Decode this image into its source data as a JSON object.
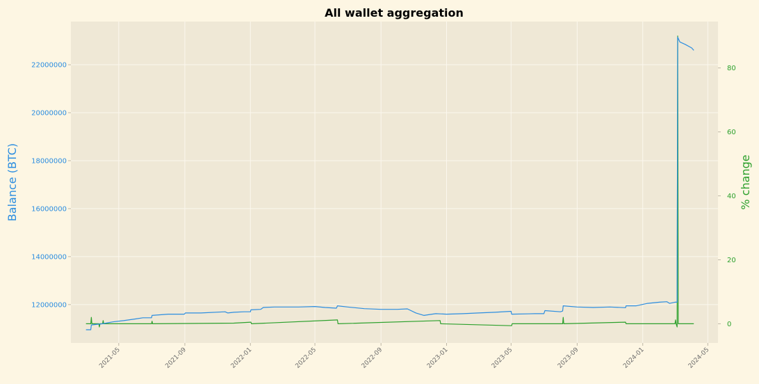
{
  "chart_data": {
    "type": "line",
    "title": "All wallet aggregation",
    "colors": {
      "background": "#fdf6e3",
      "plot_background": "#efe8d6",
      "grid": "#fbf7ee",
      "balance": "#2b8de0",
      "pct_change": "#2ca02c"
    },
    "left_axis": {
      "label": "Balance (BTC)",
      "ylim": [
        10400000,
        23800000
      ],
      "ticks": [
        "12000000",
        "14000000",
        "16000000",
        "18000000",
        "20000000",
        "22000000"
      ],
      "tick_values": [
        12000000,
        14000000,
        16000000,
        18000000,
        20000000,
        22000000
      ]
    },
    "right_axis": {
      "label": "% change",
      "ylim": [
        -6.0,
        94.5
      ],
      "ticks": [
        "0",
        "20",
        "40",
        "60",
        "80"
      ],
      "tick_values": [
        0,
        20,
        40,
        60,
        80
      ]
    },
    "x_axis": {
      "xlim": [
        "2021-02-01",
        "2024-05-20"
      ],
      "ticks": [
        "2021-05",
        "2021-09",
        "2022-01",
        "2022-05",
        "2022-09",
        "2023-01",
        "2023-05",
        "2023-09",
        "2024-01",
        "2024-05"
      ],
      "tick_dates": [
        "2021-05-01",
        "2021-09-01",
        "2022-01-01",
        "2022-05-01",
        "2022-09-01",
        "2023-01-01",
        "2023-05-01",
        "2023-09-01",
        "2024-01-01",
        "2024-05-01"
      ]
    },
    "grid": true,
    "series": [
      {
        "name": "Balance (BTC)",
        "axis": "left",
        "x": [
          "2021-03-01",
          "2021-03-10",
          "2021-03-11",
          "2021-04-01",
          "2021-04-20",
          "2021-05-10",
          "2021-06-01",
          "2021-06-15",
          "2021-07-01",
          "2021-07-02",
          "2021-08-01",
          "2021-08-31",
          "2021-09-02",
          "2021-09-20",
          "2021-10-01",
          "2021-11-15",
          "2021-11-20",
          "2021-12-01",
          "2021-12-20",
          "2022-01-01",
          "2022-01-02",
          "2022-01-20",
          "2022-01-25",
          "2022-02-15",
          "2022-03-01",
          "2022-04-01",
          "2022-05-01",
          "2022-05-20",
          "2022-06-10",
          "2022-06-12",
          "2022-07-01",
          "2022-08-01",
          "2022-09-01",
          "2022-10-01",
          "2022-10-20",
          "2022-11-05",
          "2022-11-20",
          "2022-12-05",
          "2022-12-12",
          "2023-01-01",
          "2023-02-01",
          "2023-03-01",
          "2023-04-01",
          "2023-05-01",
          "2023-05-02",
          "2023-06-15",
          "2023-07-01",
          "2023-07-03",
          "2023-08-01",
          "2023-08-05",
          "2023-08-06",
          "2023-09-01",
          "2023-10-01",
          "2023-11-01",
          "2023-11-30",
          "2023-12-01",
          "2023-12-20",
          "2024-01-10",
          "2024-02-01",
          "2024-02-15",
          "2024-02-20",
          "2024-03-01",
          "2024-03-05",
          "2024-03-06",
          "2024-03-10",
          "2024-03-20",
          "2024-04-01",
          "2024-04-05"
        ],
        "y": [
          10950000,
          10950000,
          11150000,
          11200000,
          11280000,
          11330000,
          11400000,
          11450000,
          11450000,
          11550000,
          11600000,
          11600000,
          11650000,
          11650000,
          11650000,
          11700000,
          11650000,
          11680000,
          11700000,
          11700000,
          11780000,
          11800000,
          11880000,
          11900000,
          11900000,
          11900000,
          11920000,
          11880000,
          11850000,
          11950000,
          11900000,
          11830000,
          11800000,
          11800000,
          11820000,
          11650000,
          11550000,
          11600000,
          11620000,
          11600000,
          11620000,
          11650000,
          11680000,
          11720000,
          11600000,
          11620000,
          11620000,
          11750000,
          11700000,
          11730000,
          11950000,
          11900000,
          11880000,
          11900000,
          11870000,
          11950000,
          11950000,
          12050000,
          12100000,
          12120000,
          12050000,
          12100000,
          12100000,
          23150000,
          22950000,
          22850000,
          22700000,
          22600000
        ]
      },
      {
        "name": "% change",
        "axis": "right",
        "x": [
          "2021-03-01",
          "2021-03-10",
          "2021-03-11",
          "2021-03-12",
          "2021-03-25",
          "2021-03-26",
          "2021-03-27",
          "2021-04-01",
          "2021-04-02",
          "2021-04-03",
          "2021-07-01",
          "2021-07-02",
          "2021-07-03",
          "2021-12-01",
          "2022-01-02",
          "2022-01-03",
          "2022-06-12",
          "2022-06-13",
          "2022-12-20",
          "2022-12-21",
          "2023-05-02",
          "2023-05-03",
          "2023-08-05",
          "2023-08-06",
          "2023-08-07",
          "2023-11-30",
          "2023-12-01",
          "2024-03-01",
          "2024-03-02",
          "2024-03-03",
          "2024-03-05",
          "2024-03-06",
          "2024-03-07",
          "2024-03-08",
          "2024-04-05"
        ],
        "y": [
          0,
          0,
          2,
          0,
          0,
          -1,
          0,
          0,
          1,
          0,
          0,
          0.8,
          0,
          0.2,
          0.5,
          0,
          1.2,
          0,
          1,
          0,
          -0.6,
          0,
          0,
          2,
          0,
          0.5,
          0,
          0,
          1.2,
          0,
          -1,
          90,
          0,
          0,
          0
        ]
      }
    ]
  }
}
